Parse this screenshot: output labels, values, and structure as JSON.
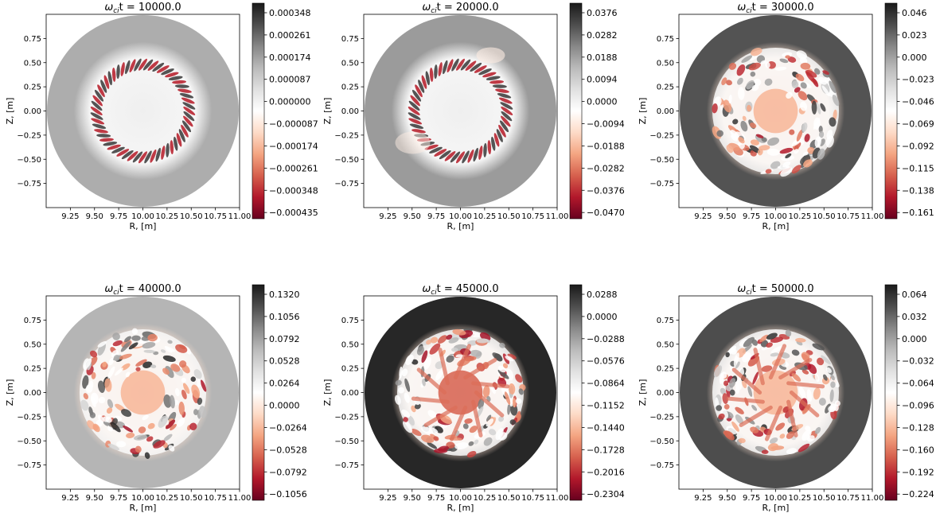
{
  "figure": {
    "colormap": "RdGy",
    "colors": {
      "dark_red": "#67001f",
      "mid_red": "#d6604d",
      "light": "#fddbc7",
      "white": "#ffffff",
      "light_gray": "#e0e0e0",
      "mid_gray": "#878787",
      "dark_gray": "#1a1a1a"
    }
  },
  "chart_data": [
    {
      "type": "heatmap",
      "title_prefix": "ω",
      "title_sub": "ci",
      "title_rest": "t = 10000.0",
      "xlabel": "R, [m]",
      "ylabel": "Z, [m]",
      "x_ticks": [
        "9.25",
        "9.50",
        "9.75",
        "10.00",
        "10.25",
        "10.50",
        "10.75",
        "11.00"
      ],
      "y_ticks": [
        "0.75",
        "0.50",
        "0.25",
        "0.00",
        "−0.25",
        "−0.50",
        "−0.75"
      ],
      "xlim": [
        9.0,
        11.0
      ],
      "ylim": [
        -1.0,
        1.0
      ],
      "colorbar_ticks": [
        "0.000348",
        "0.000261",
        "0.000174",
        "0.000087",
        "0.000000",
        "−0.000087",
        "−0.000174",
        "−0.000261",
        "−0.000348",
        "−0.000435"
      ],
      "colorbar_range": [
        -0.000435,
        0.000348
      ],
      "pattern": "ring",
      "background_level": 0.45
    },
    {
      "type": "heatmap",
      "title_prefix": "ω",
      "title_sub": "ci",
      "title_rest": "t = 20000.0",
      "xlabel": "R, [m]",
      "ylabel": "Z, [m]",
      "x_ticks": [
        "9.25",
        "9.50",
        "9.75",
        "10.00",
        "10.25",
        "10.50",
        "10.75",
        "11.00"
      ],
      "y_ticks": [
        "0.75",
        "0.50",
        "0.25",
        "0.00",
        "−0.25",
        "−0.50",
        "−0.75"
      ],
      "xlim": [
        9.0,
        11.0
      ],
      "ylim": [
        -1.0,
        1.0
      ],
      "colorbar_ticks": [
        "0.0376",
        "0.0282",
        "0.0188",
        "0.0094",
        "0.0000",
        "−0.0094",
        "−0.0188",
        "−0.0282",
        "−0.0376",
        "−0.0470"
      ],
      "colorbar_range": [
        -0.047,
        0.0376
      ],
      "pattern": "ring",
      "background_level": 0.52
    },
    {
      "type": "heatmap",
      "title_prefix": "ω",
      "title_sub": "ci",
      "title_rest": "t = 30000.0",
      "xlabel": "R, [m]",
      "ylabel": "Z, [m]",
      "x_ticks": [
        "9.25",
        "9.50",
        "9.75",
        "10.00",
        "10.25",
        "10.50",
        "10.75",
        "11.00"
      ],
      "y_ticks": [
        "0.75",
        "0.50",
        "0.25",
        "0.00",
        "−0.25",
        "−0.50",
        "−0.75"
      ],
      "xlim": [
        9.0,
        11.0
      ],
      "ylim": [
        -1.0,
        1.0
      ],
      "colorbar_ticks": [
        "0.046",
        "0.023",
        "0.000",
        "−0.023",
        "−0.046",
        "−0.069",
        "−0.092",
        "−0.115",
        "−0.138",
        "−0.161"
      ],
      "colorbar_range": [
        -0.161,
        0.046
      ],
      "pattern": "turbulent",
      "background_level": 0.78
    },
    {
      "type": "heatmap",
      "title_prefix": "ω",
      "title_sub": "ci",
      "title_rest": "t = 40000.0",
      "xlabel": "R, [m]",
      "ylabel": "Z, [m]",
      "x_ticks": [
        "9.25",
        "9.50",
        "9.75",
        "10.00",
        "10.25",
        "10.50",
        "10.75",
        "11.00"
      ],
      "y_ticks": [
        "0.75",
        "0.50",
        "0.25",
        "0.00",
        "−0.25",
        "−0.50",
        "−0.75"
      ],
      "xlim": [
        9.0,
        11.0
      ],
      "ylim": [
        -1.0,
        1.0
      ],
      "colorbar_ticks": [
        "0.1320",
        "0.1056",
        "0.0792",
        "0.0528",
        "0.0264",
        "0.0000",
        "−0.0264",
        "−0.0528",
        "−0.0792",
        "−0.1056"
      ],
      "colorbar_range": [
        -0.1056,
        0.132
      ],
      "pattern": "turbulent",
      "background_level": 0.42
    },
    {
      "type": "heatmap",
      "title_prefix": "ω",
      "title_sub": "ci",
      "title_rest": "t = 45000.0",
      "xlabel": "R, [m]",
      "ylabel": "Z, [m]",
      "x_ticks": [
        "9.25",
        "9.50",
        "9.75",
        "10.00",
        "10.25",
        "10.50",
        "10.75",
        "11.00"
      ],
      "y_ticks": [
        "0.75",
        "0.50",
        "0.25",
        "0.00",
        "−0.25",
        "−0.50",
        "−0.75"
      ],
      "xlim": [
        9.0,
        11.0
      ],
      "ylim": [
        -1.0,
        1.0
      ],
      "colorbar_ticks": [
        "0.0288",
        "0.0000",
        "−0.0288",
        "−0.0576",
        "−0.0864",
        "−0.1152",
        "−0.1440",
        "−0.1728",
        "−0.2016",
        "−0.2304"
      ],
      "colorbar_range": [
        -0.2304,
        0.0288
      ],
      "pattern": "turbulent",
      "background_level": 0.95
    },
    {
      "type": "heatmap",
      "title_prefix": "ω",
      "title_sub": "ci",
      "title_rest": "t = 50000.0",
      "xlabel": "R, [m]",
      "ylabel": "Z, [m]",
      "x_ticks": [
        "9.25",
        "9.50",
        "9.75",
        "10.00",
        "10.25",
        "10.50",
        "10.75",
        "11.00"
      ],
      "y_ticks": [
        "0.75",
        "0.50",
        "0.25",
        "0.00",
        "−0.25",
        "−0.50",
        "−0.75"
      ],
      "xlim": [
        9.0,
        11.0
      ],
      "ylim": [
        -1.0,
        1.0
      ],
      "colorbar_ticks": [
        "0.064",
        "0.032",
        "0.000",
        "−0.032",
        "−0.064",
        "−0.096",
        "−0.128",
        "−0.160",
        "−0.192",
        "−0.224"
      ],
      "colorbar_range": [
        -0.224,
        0.064
      ],
      "pattern": "turbulent",
      "background_level": 0.8
    }
  ]
}
